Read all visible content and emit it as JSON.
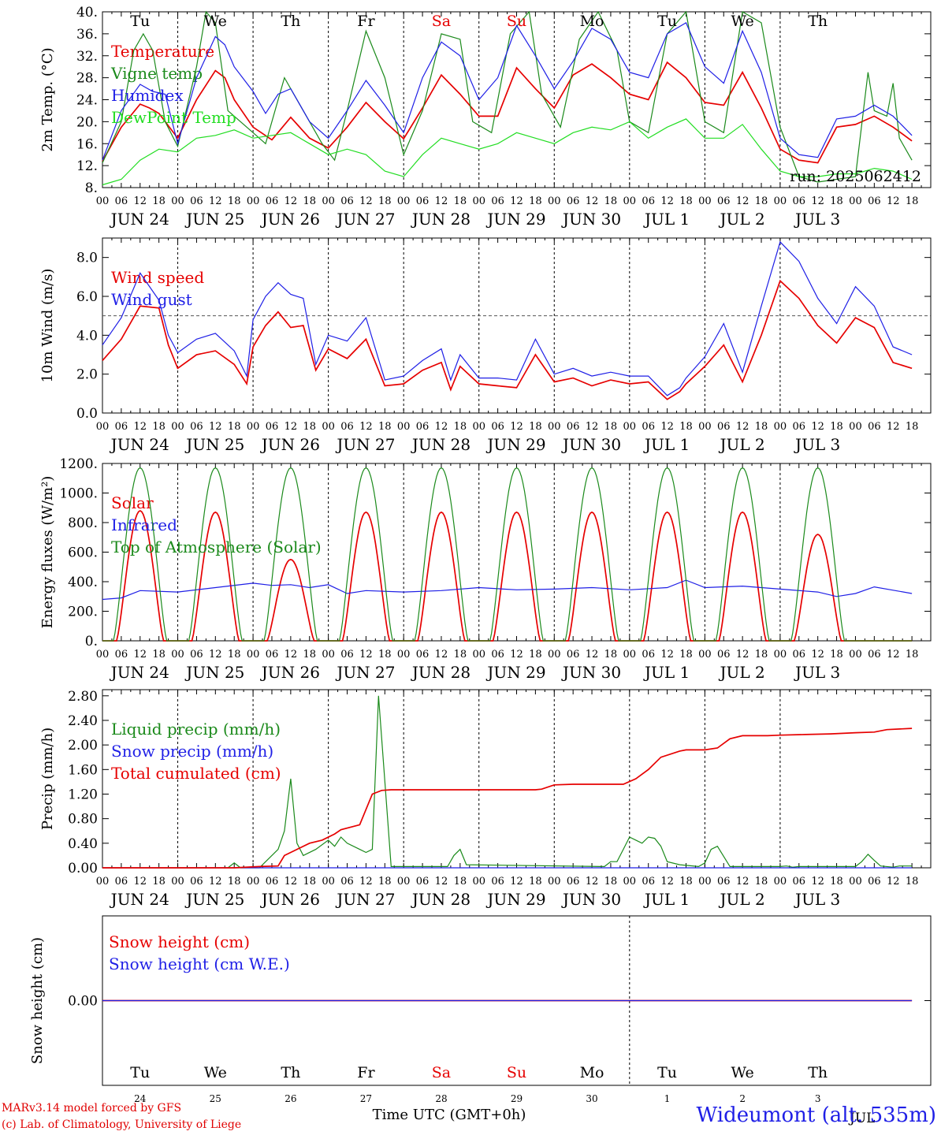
{
  "days": [
    "JUN 24",
    "JUN 25",
    "JUN 26",
    "JUN 27",
    "JUN 28",
    "JUN 29",
    "JUN 30",
    "JUL  1",
    "JUL  2",
    "JUL  3"
  ],
  "weekdays": [
    "Tu",
    "We",
    "Th",
    "Fr",
    "Sa",
    "Su",
    "Mo",
    "Tu",
    "We",
    "Th"
  ],
  "weekend_days": [
    "Sa",
    "Su"
  ],
  "hour_ticks": [
    "00",
    "06",
    "12",
    "18"
  ],
  "footer": {
    "day_numbers": [
      "24",
      "25",
      "26",
      "27",
      "28",
      "29",
      "30",
      "1",
      "2",
      "3"
    ],
    "xlabel": "Time UTC (GMT+0h)",
    "month_label": "JUL",
    "station": "Wideumont (alt. 535m)",
    "credit1": "MARv3.14 model forced by GFS",
    "credit2": "(c) Lab. of Climatology, University of Liege"
  },
  "colors": {
    "red": "#e60000",
    "green": "#1b8a1b",
    "blue": "#1f1fe6",
    "lightgreen": "#22dd22"
  },
  "chart_data": [
    {
      "type": "line",
      "ylabel": "2m Temp. (°C)",
      "ylim": [
        8,
        40
      ],
      "yticks": [
        "8.",
        "12.",
        "16.",
        "20.",
        "24.",
        "28.",
        "32.",
        "36.",
        "40."
      ],
      "annotation": "run: 2025062412",
      "x_unit": "hours since 2025-06-24 00 UTC",
      "series": [
        {
          "name": "Temperature",
          "color": "red",
          "x": [
            0,
            6,
            12,
            15,
            18,
            24,
            30,
            36,
            39,
            42,
            48,
            54,
            60,
            66,
            72,
            78,
            84,
            90,
            96,
            102,
            108,
            114,
            120,
            126,
            132,
            138,
            144,
            150,
            156,
            162,
            168,
            174,
            180,
            186,
            192,
            198,
            204,
            210,
            216,
            222,
            228,
            234,
            240,
            246,
            252,
            258
          ],
          "y": [
            12.8,
            19,
            23.2,
            22.5,
            21.5,
            17,
            24,
            29.3,
            28,
            24,
            19,
            16.7,
            20.8,
            17,
            15.2,
            19,
            23.5,
            20,
            16.9,
            22.5,
            28.5,
            25,
            21,
            21,
            29.8,
            26,
            22.5,
            28.5,
            30.5,
            28,
            25,
            24,
            30.8,
            28,
            23.5,
            23,
            29,
            22.5,
            15,
            13,
            12.5,
            19,
            19.5,
            21,
            19,
            16.5
          ]
        },
        {
          "name": "Vigne temp",
          "color": "green",
          "x": [
            0,
            6,
            10,
            13,
            16,
            20,
            24,
            30,
            33,
            36,
            40,
            46,
            52,
            58,
            64,
            70,
            74,
            78,
            84,
            90,
            96,
            102,
            108,
            114,
            118,
            124,
            130,
            136,
            140,
            146,
            152,
            158,
            164,
            168,
            174,
            180,
            186,
            192,
            198,
            204,
            210,
            216,
            222,
            228,
            234,
            240,
            244,
            246,
            250,
            252,
            254,
            258
          ],
          "y": [
            12.5,
            20,
            33,
            36,
            33,
            20,
            15.5,
            30,
            40,
            38,
            22,
            19,
            16,
            28,
            22,
            16,
            13,
            22,
            36.5,
            28,
            14,
            22,
            36,
            35,
            20,
            18,
            36,
            40,
            25,
            19,
            35,
            40,
            33,
            20,
            18,
            36,
            40,
            20,
            18,
            40,
            38,
            19,
            10,
            9,
            9.5,
            10,
            29,
            22,
            21,
            27,
            17,
            13
          ]
        },
        {
          "name": "Humidex",
          "color": "blue",
          "x": [
            0,
            6,
            12,
            16,
            20,
            24,
            30,
            36,
            39,
            42,
            48,
            52,
            56,
            60,
            66,
            72,
            78,
            84,
            90,
            96,
            102,
            108,
            114,
            120,
            126,
            132,
            138,
            144,
            150,
            156,
            162,
            168,
            174,
            180,
            186,
            192,
            198,
            204,
            210,
            216,
            222,
            228,
            234,
            240,
            246,
            252,
            258
          ],
          "y": [
            13,
            22,
            26.8,
            25.5,
            25,
            16,
            28,
            35.5,
            34,
            30,
            25.5,
            21.5,
            25,
            26,
            20,
            17,
            22,
            27.5,
            23,
            18,
            28,
            34.5,
            32,
            24,
            28,
            37.5,
            32,
            26,
            31,
            37,
            35,
            29,
            28,
            36,
            38,
            30,
            27,
            36.5,
            29,
            17,
            14,
            13.5,
            20.5,
            21,
            23,
            21,
            17.5
          ]
        },
        {
          "name": "DewPoint Temp",
          "color": "lightgreen",
          "x": [
            0,
            6,
            12,
            18,
            24,
            30,
            36,
            42,
            48,
            54,
            60,
            66,
            72,
            78,
            84,
            90,
            96,
            102,
            108,
            114,
            120,
            126,
            132,
            138,
            144,
            150,
            156,
            162,
            168,
            174,
            180,
            186,
            192,
            198,
            204,
            210,
            216,
            222,
            228,
            234,
            240,
            246,
            252,
            258
          ],
          "y": [
            8.5,
            9.5,
            13,
            15,
            14.5,
            17,
            17.5,
            18.5,
            17,
            17.5,
            18,
            16,
            14,
            15,
            14,
            11,
            10,
            14,
            17,
            16,
            15,
            16,
            18,
            17,
            16,
            18,
            19,
            18.5,
            20,
            17,
            19,
            20.5,
            17,
            17,
            19.5,
            15,
            11,
            10,
            10,
            10.5,
            10.5,
            11.5,
            11,
            9.5
          ]
        }
      ]
    },
    {
      "type": "line",
      "ylabel": "10m Wind (m/s)",
      "ylim": [
        0,
        9
      ],
      "yticks": [
        "0.0",
        "2.0",
        "4.0",
        "6.0",
        "8.0"
      ],
      "ref_line": 5,
      "x_unit": "hours since 2025-06-24 00 UTC",
      "series": [
        {
          "name": "Wind speed",
          "color": "red",
          "x": [
            0,
            6,
            12,
            18,
            21,
            24,
            30,
            36,
            42,
            46,
            48,
            52,
            56,
            60,
            64,
            68,
            72,
            78,
            84,
            90,
            96,
            102,
            108,
            111,
            114,
            120,
            126,
            132,
            138,
            144,
            150,
            156,
            162,
            168,
            174,
            180,
            184,
            186,
            192,
            198,
            204,
            210,
            216,
            222,
            228,
            234,
            240,
            246,
            252,
            258
          ],
          "y": [
            2.7,
            3.8,
            5.5,
            5.4,
            3.5,
            2.3,
            3.0,
            3.2,
            2.5,
            1.5,
            3.4,
            4.5,
            5.2,
            4.4,
            4.5,
            2.2,
            3.3,
            2.8,
            3.8,
            1.4,
            1.5,
            2.2,
            2.6,
            1.2,
            2.4,
            1.5,
            1.4,
            1.3,
            3.0,
            1.6,
            1.8,
            1.4,
            1.7,
            1.5,
            1.6,
            0.7,
            1.1,
            1.5,
            2.4,
            3.5,
            1.6,
            4.0,
            6.8,
            5.9,
            4.5,
            3.6,
            4.9,
            4.4,
            2.6,
            2.3
          ]
        },
        {
          "name": "Wind gust",
          "color": "blue",
          "x": [
            0,
            6,
            12,
            18,
            21,
            24,
            30,
            36,
            42,
            46,
            48,
            52,
            56,
            60,
            64,
            68,
            72,
            78,
            84,
            90,
            96,
            102,
            108,
            111,
            114,
            120,
            126,
            132,
            138,
            144,
            150,
            156,
            162,
            168,
            174,
            180,
            184,
            186,
            192,
            198,
            204,
            210,
            216,
            222,
            228,
            234,
            240,
            246,
            252,
            258
          ],
          "y": [
            3.5,
            4.9,
            7.2,
            5.8,
            4.0,
            3.1,
            3.8,
            4.1,
            3.2,
            1.9,
            4.8,
            6.0,
            6.7,
            6.1,
            5.9,
            2.5,
            4.0,
            3.7,
            4.9,
            1.7,
            1.9,
            2.7,
            3.3,
            1.7,
            3.0,
            1.8,
            1.8,
            1.7,
            3.8,
            2.0,
            2.3,
            1.9,
            2.1,
            1.9,
            1.9,
            0.9,
            1.3,
            1.8,
            2.9,
            4.6,
            2.1,
            5.5,
            8.8,
            7.8,
            5.9,
            4.6,
            6.5,
            5.5,
            3.4,
            3.0
          ]
        }
      ]
    },
    {
      "type": "line",
      "ylabel": "Energy fluxes (W/m²)",
      "ylim": [
        0,
        1200
      ],
      "yticks": [
        "0.",
        "200.",
        "400.",
        "600.",
        "800.",
        "1000.",
        "1200."
      ],
      "x_unit": "hours since 2025-06-24 00 UTC",
      "series": [
        {
          "name": "Solar",
          "color": "red",
          "model": "daily bell, peak near 12 UTC",
          "peaks": [
            880,
            870,
            550,
            870,
            870,
            870,
            870,
            870,
            870,
            720
          ]
        },
        {
          "name": "Infrared",
          "color": "blue",
          "x": [
            0,
            6,
            12,
            24,
            36,
            48,
            54,
            60,
            66,
            72,
            78,
            84,
            96,
            108,
            120,
            132,
            144,
            156,
            168,
            180,
            186,
            192,
            204,
            216,
            228,
            234,
            240,
            246,
            258
          ],
          "y": [
            280,
            290,
            340,
            330,
            360,
            390,
            375,
            380,
            360,
            380,
            320,
            340,
            330,
            340,
            360,
            345,
            350,
            360,
            345,
            360,
            410,
            360,
            370,
            350,
            330,
            300,
            320,
            365,
            320
          ]
        },
        {
          "name": "Top of Atmosphere (Solar)",
          "color": "green",
          "model": "daily bell, peak 1170 near 12 UTC",
          "peaks": [
            1170,
            1170,
            1170,
            1170,
            1170,
            1170,
            1170,
            1170,
            1170,
            1170
          ]
        }
      ]
    },
    {
      "type": "line",
      "ylabel": "Precip (mm/h)",
      "ylim": [
        0,
        2.9
      ],
      "yticks": [
        "0.00",
        "0.40",
        "0.80",
        "1.20",
        "1.60",
        "2.00",
        "2.40",
        "2.80"
      ],
      "x_unit": "hours since 2025-06-24 00 UTC",
      "series": [
        {
          "name": "Liquid precip (mm/h)",
          "color": "green",
          "x": [
            0,
            40,
            42,
            44,
            50,
            56,
            58,
            60,
            62,
            64,
            68,
            72,
            74,
            76,
            78,
            82,
            84,
            86,
            88,
            92,
            110,
            112,
            114,
            116,
            160,
            162,
            164,
            166,
            168,
            170,
            172,
            174,
            176,
            178,
            180,
            184,
            190,
            192,
            194,
            196,
            200,
            214,
            216,
            218,
            220,
            222,
            240,
            242,
            244,
            246,
            248,
            252,
            254,
            256,
            258
          ],
          "y": [
            0,
            0,
            0.08,
            0,
            0,
            0.3,
            0.6,
            1.45,
            0.4,
            0.2,
            0.3,
            0.45,
            0.35,
            0.5,
            0.4,
            0.3,
            0.25,
            0.3,
            2.8,
            0.02,
            0.02,
            0.2,
            0.3,
            0.05,
            0.02,
            0.1,
            0.1,
            0.3,
            0.5,
            0.45,
            0.4,
            0.5,
            0.48,
            0.35,
            0.1,
            0.05,
            0.02,
            0.08,
            0.3,
            0.35,
            0.02,
            0.02,
            0.02,
            0.03,
            0.01,
            0.02,
            0.02,
            0.1,
            0.22,
            0.12,
            0.03,
            0.01,
            0.03,
            0.03,
            0.03
          ]
        },
        {
          "name": "Snow precip (mm/h)",
          "color": "blue",
          "x": [
            0,
            258
          ],
          "y": [
            0,
            0
          ]
        },
        {
          "name": "Total cumulated (cm)",
          "color": "red",
          "x": [
            0,
            42,
            50,
            56,
            58,
            62,
            66,
            70,
            74,
            76,
            82,
            86,
            89,
            92,
            95,
            120,
            138,
            140,
            144,
            150,
            158,
            166,
            170,
            174,
            178,
            184,
            186,
            192,
            196,
            200,
            204,
            212,
            216,
            224,
            232,
            240,
            246,
            250,
            258
          ],
          "y": [
            0,
            0,
            0.02,
            0.03,
            0.2,
            0.3,
            0.4,
            0.45,
            0.55,
            0.62,
            0.7,
            1.2,
            1.26,
            1.27,
            1.27,
            1.27,
            1.27,
            1.28,
            1.35,
            1.36,
            1.36,
            1.36,
            1.45,
            1.6,
            1.8,
            1.9,
            1.92,
            1.92,
            1.95,
            2.1,
            2.15,
            2.15,
            2.16,
            2.17,
            2.18,
            2.2,
            2.21,
            2.25,
            2.27
          ]
        }
      ]
    },
    {
      "type": "line",
      "ylabel": "Snow height (cm)",
      "ylim": [
        -1,
        1
      ],
      "yticks": [
        "0.00"
      ],
      "x_unit": "hours since 2025-06-24 00 UTC",
      "series": [
        {
          "name": "Snow height (cm)",
          "color": "red",
          "x": [
            0,
            258
          ],
          "y": [
            0,
            0
          ]
        },
        {
          "name": "Snow height (cm W.E.)",
          "color": "blue",
          "x": [
            0,
            258
          ],
          "y": [
            0,
            0
          ]
        }
      ]
    }
  ]
}
